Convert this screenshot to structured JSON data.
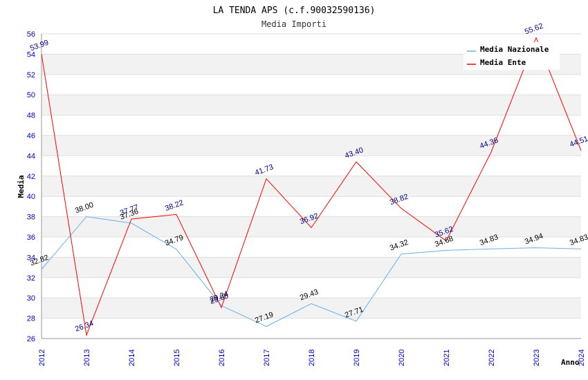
{
  "chart_data": {
    "type": "line",
    "title": "LA TENDA APS (c.f.90032590136)",
    "subtitle": "Media Importi",
    "xlabel": "Anno",
    "ylabel": "Media",
    "ylim": [
      26,
      56
    ],
    "ystep": 2,
    "categories": [
      "2012",
      "2013",
      "2014",
      "2015",
      "2016",
      "2017",
      "2018",
      "2019",
      "2020",
      "2021",
      "2022",
      "2023",
      "2024"
    ],
    "series": [
      {
        "name": "Media Nazionale",
        "color": "#6aaee8",
        "values": [
          32.82,
          38.0,
          37.36,
          34.79,
          29.24,
          27.19,
          29.43,
          27.71,
          34.32,
          34.68,
          34.83,
          34.94,
          34.83
        ],
        "labels": [
          "32.82",
          "38.00",
          "37.36",
          "34.79",
          "29.24",
          "27.19",
          "29.43",
          "27.71",
          "34.32",
          "34.68",
          "34.83",
          "34.94",
          "34.83"
        ]
      },
      {
        "name": "Media Ente",
        "color": "#ff0000",
        "values": [
          53.99,
          26.34,
          37.77,
          38.22,
          29.05,
          41.73,
          36.92,
          43.4,
          38.82,
          35.62,
          44.36,
          55.62,
          44.51
        ],
        "labels": [
          "53.99",
          "26.34",
          "37.77",
          "38.22",
          "29.05",
          "41.73",
          "36.92",
          "43.40",
          "38.82",
          "35.62",
          "44.36",
          "55.62",
          "44.51"
        ]
      }
    ],
    "legend_position": "top-right",
    "grid": true
  }
}
